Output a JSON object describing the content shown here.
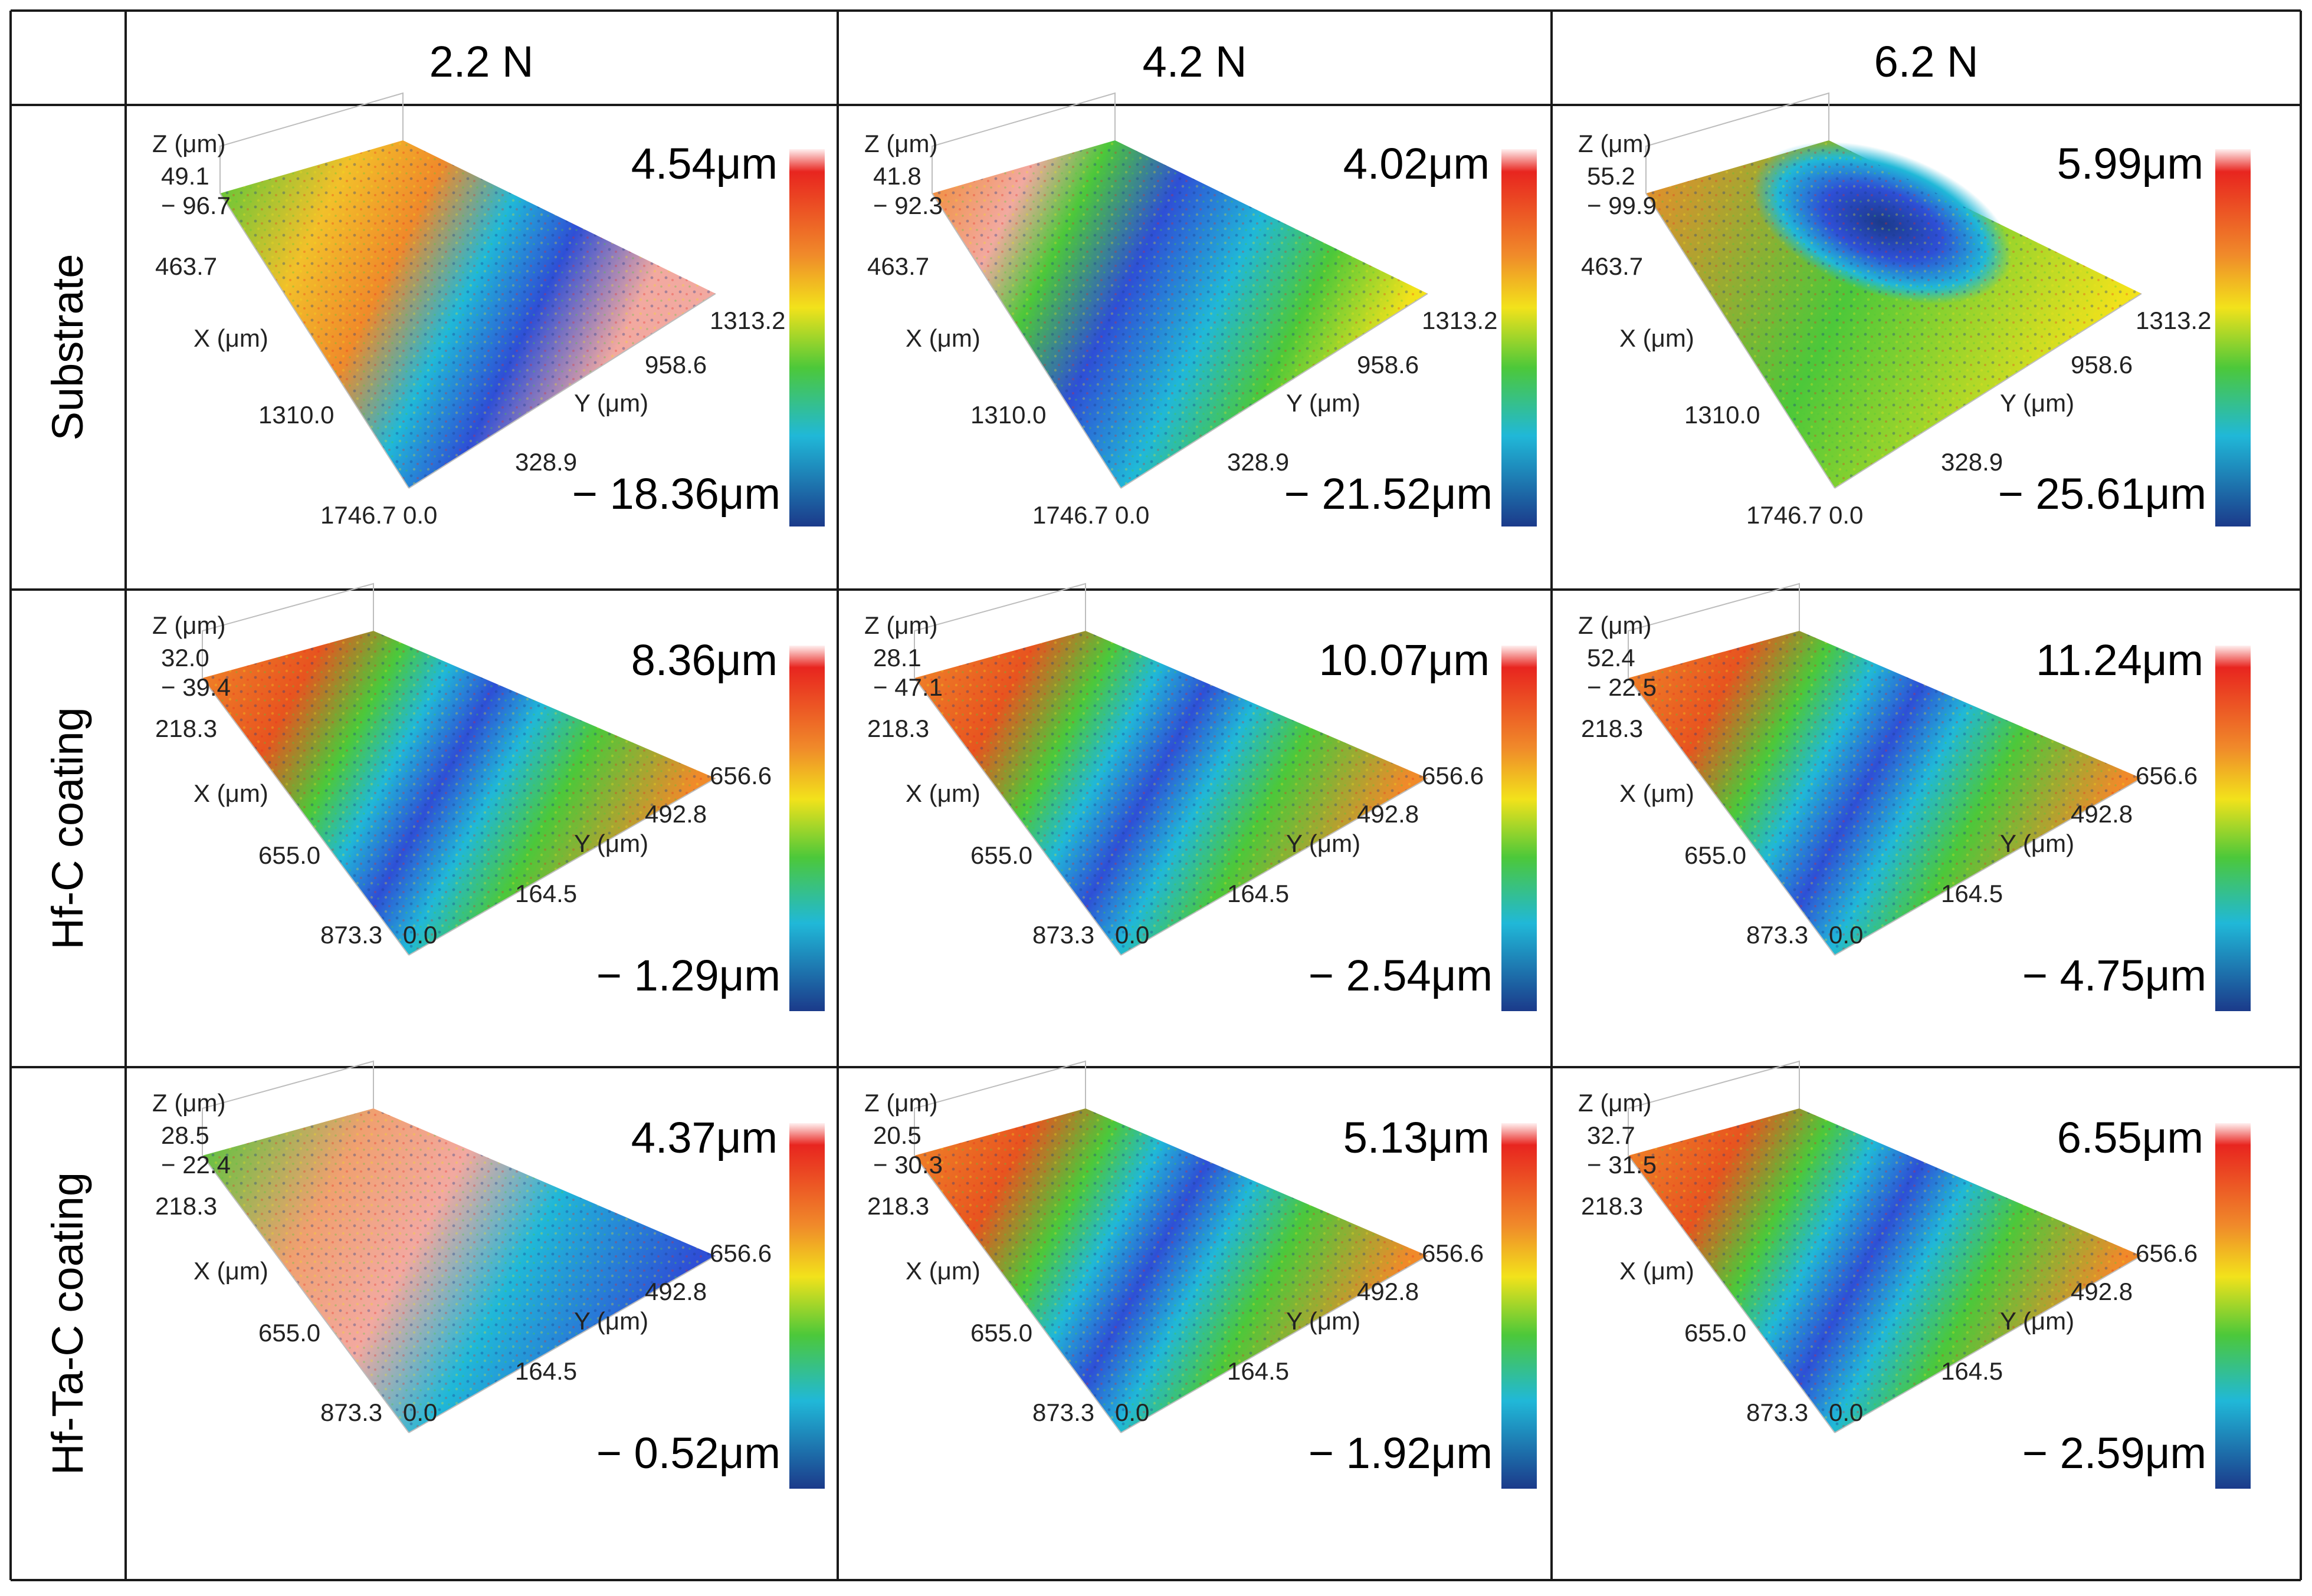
{
  "columns": [
    "2.2 N",
    "4.2 N",
    "6.2 N"
  ],
  "rows": [
    {
      "label": "Substrate",
      "cells": [
        {
          "z_label": "Z (μm)",
          "z_hi": "49.1",
          "z_lo": "− 96.7",
          "x_label": "X (μm)",
          "x1": "463.7",
          "x2": "1310.0",
          "x3": "1746.7",
          "y_label": "Y (μm)",
          "y0": "0.0",
          "y1": "328.9",
          "y2": "958.6",
          "y3": "1313.2",
          "max": "4.54μm",
          "min": "− 18.36μm",
          "pattern": "substrate-diagonal"
        },
        {
          "z_label": "Z (μm)",
          "z_hi": "41.8",
          "z_lo": "− 92.3",
          "x_label": "X (μm)",
          "x1": "463.7",
          "x2": "1310.0",
          "x3": "1746.7",
          "y_label": "Y (μm)",
          "y0": "0.0",
          "y1": "328.9",
          "y2": "958.6",
          "y3": "1313.2",
          "max": "4.02μm",
          "min": "− 21.52μm",
          "pattern": "substrate-track"
        },
        {
          "z_label": "Z (μm)",
          "z_hi": "55.2",
          "z_lo": "− 99.9",
          "x_label": "X (μm)",
          "x1": "463.7",
          "x2": "1310.0",
          "x3": "1746.7",
          "y_label": "Y (μm)",
          "y0": "0.0",
          "y1": "328.9",
          "y2": "958.6",
          "y3": "1313.2",
          "max": "5.99μm",
          "min": "− 25.61μm",
          "pattern": "substrate-pit"
        }
      ]
    },
    {
      "label": "Hf-C coating",
      "cells": [
        {
          "z_label": "Z (μm)",
          "z_hi": "32.0",
          "z_lo": "− 39.4",
          "x_label": "X (μm)",
          "x1": "218.3",
          "x2": "655.0",
          "x3": "873.3",
          "y_label": "Y (μm)",
          "y0": "0.0",
          "y1": "164.5",
          "y2": "492.8",
          "y3": "656.6",
          "max": "8.36μm",
          "min": "− 1.29μm",
          "pattern": "coating-track"
        },
        {
          "z_label": "Z (μm)",
          "z_hi": "28.1",
          "z_lo": "− 47.1",
          "x_label": "X (μm)",
          "x1": "218.3",
          "x2": "655.0",
          "x3": "873.3",
          "y_label": "Y (μm)",
          "y0": "0.0",
          "y1": "164.5",
          "y2": "492.8",
          "y3": "656.6",
          "max": "10.07μm",
          "min": "− 2.54μm",
          "pattern": "coating-track"
        },
        {
          "z_label": "Z (μm)",
          "z_hi": "52.4",
          "z_lo": "− 22.5",
          "x_label": "X (μm)",
          "x1": "218.3",
          "x2": "655.0",
          "x3": "873.3",
          "y_label": "Y (μm)",
          "y0": "0.0",
          "y1": "164.5",
          "y2": "492.8",
          "y3": "656.6",
          "max": "11.24μm",
          "min": "− 4.75μm",
          "pattern": "coating-track"
        }
      ]
    },
    {
      "label": "Hf-Ta-C coating",
      "cells": [
        {
          "z_label": "Z (μm)",
          "z_hi": "28.5",
          "z_lo": "− 22.4",
          "x_label": "X (μm)",
          "x1": "218.3",
          "x2": "655.0",
          "x3": "873.3",
          "y_label": "Y (μm)",
          "y0": "0.0",
          "y1": "164.5",
          "y2": "492.8",
          "y3": "656.6",
          "max": "4.37μm",
          "min": "− 0.52μm",
          "pattern": "coating-faint"
        },
        {
          "z_label": "Z (μm)",
          "z_hi": "20.5",
          "z_lo": "− 30.3",
          "x_label": "X (μm)",
          "x1": "218.3",
          "x2": "655.0",
          "x3": "873.3",
          "y_label": "Y (μm)",
          "y0": "0.0",
          "y1": "164.5",
          "y2": "492.8",
          "y3": "656.6",
          "max": "5.13μm",
          "min": "− 1.92μm",
          "pattern": "coating-track"
        },
        {
          "z_label": "Z (μm)",
          "z_hi": "32.7",
          "z_lo": "− 31.5",
          "x_label": "X (μm)",
          "x1": "218.3",
          "x2": "655.0",
          "x3": "873.3",
          "y_label": "Y (μm)",
          "y0": "0.0",
          "y1": "164.5",
          "y2": "492.8",
          "y3": "656.6",
          "max": "6.55μm",
          "min": "− 2.59μm",
          "pattern": "coating-track"
        }
      ]
    }
  ],
  "colors": {
    "high": "#e8251f",
    "orange": "#f08a2a",
    "yellow": "#f2e21b",
    "green": "#4cc83a",
    "cyan": "#20b8d8",
    "blue": "#2e4fd6",
    "deep": "#1b3a8a",
    "pink": "#f2a9a0",
    "grid": "#1a1a1a"
  }
}
